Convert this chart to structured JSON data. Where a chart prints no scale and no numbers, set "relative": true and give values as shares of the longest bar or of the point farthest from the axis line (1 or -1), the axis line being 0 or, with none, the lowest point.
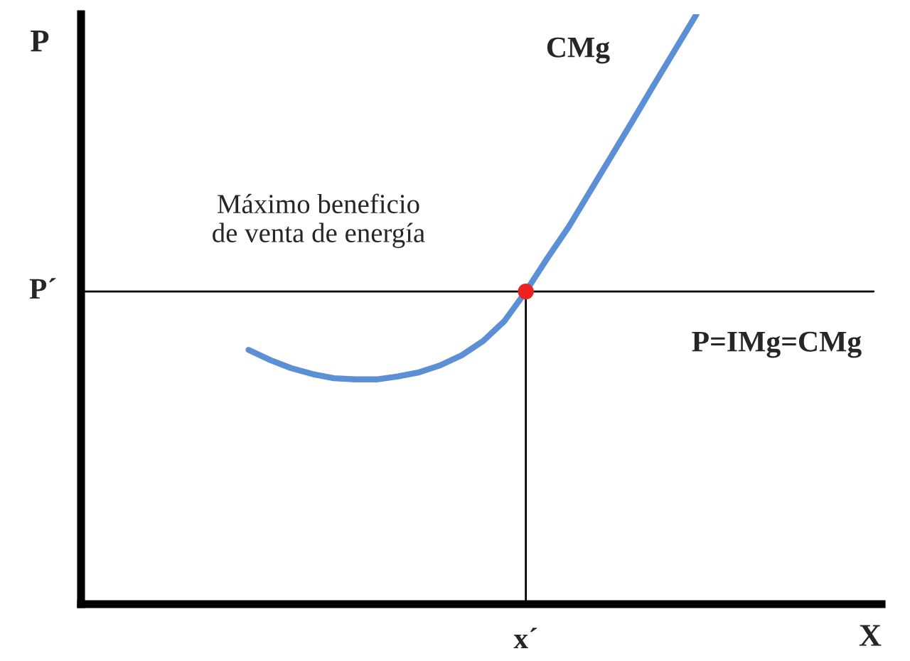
{
  "chart_data": {
    "type": "line",
    "relative": true,
    "xlabel": "X",
    "legend": false,
    "marker": "none",
    "line_style": "solid",
    "categories": [
      null,
      null,
      null,
      null,
      null,
      null,
      null,
      null,
      null,
      null,
      null,
      null,
      null,
      null,
      null,
      null,
      null,
      null,
      null,
      null,
      null,
      null
    ],
    "series": [
      {
        "color": "#5b8fd6",
        "values": [
          0.431,
          0.414,
          0.4,
          0.39,
          0.383,
          0.381,
          0.381,
          0.386,
          0.393,
          0.405,
          0.422,
          0.446,
          0.48,
          0.53,
          0.586,
          0.639,
          0.699,
          0.759,
          0.819,
          0.88,
          0.94,
          1.0
        ]
      }
    ],
    "ref_lines": [
      {
        "axis": "y",
        "value": 0.53,
        "label": "P´",
        "color": "#000000"
      },
      {
        "axis": "x",
        "label": "x´",
        "color": "#000000"
      }
    ],
    "annotations": [
      "Máximo beneficio\nde venta de energía",
      "CMg",
      "P=IMg=CMg",
      "P"
    ]
  }
}
